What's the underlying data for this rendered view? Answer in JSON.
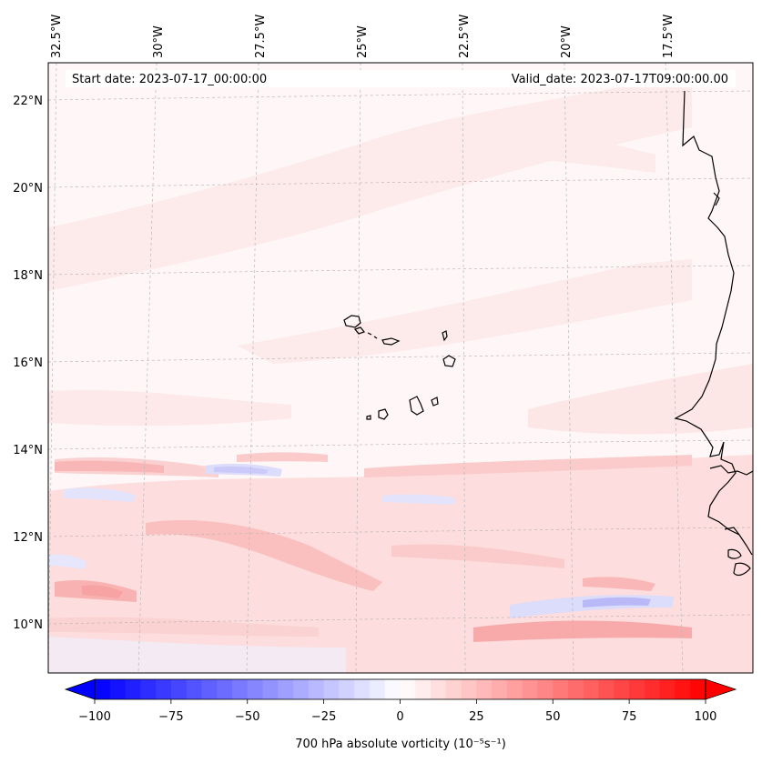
{
  "map": {
    "start_label": "Start date: 2023-07-17_00:00:00",
    "valid_label": "Valid_date: 2023-07-17T09:00:00.00",
    "projection": "lambert-conformal",
    "extent_deg": {
      "lon_min": -33.0,
      "lon_max": -16.0,
      "lat_min": 8.8,
      "lat_max": 22.8
    },
    "lon_ticks": [
      {
        "label": "32.5°W",
        "value": -32.5
      },
      {
        "label": "30°W",
        "value": -30
      },
      {
        "label": "27.5°W",
        "value": -27.5
      },
      {
        "label": "25°W",
        "value": -25
      },
      {
        "label": "22.5°W",
        "value": -22.5
      },
      {
        "label": "20°W",
        "value": -20
      },
      {
        "label": "17.5°W",
        "value": -17.5
      }
    ],
    "lat_ticks": [
      {
        "label": "22°N",
        "value": 22
      },
      {
        "label": "20°N",
        "value": 20
      },
      {
        "label": "18°N",
        "value": 18
      },
      {
        "label": "16°N",
        "value": 16
      },
      {
        "label": "14°N",
        "value": 14
      },
      {
        "label": "12°N",
        "value": 12
      },
      {
        "label": "10°N",
        "value": 10
      }
    ],
    "features": [
      "Cabo Verde islands",
      "West African coastline"
    ],
    "colors": {
      "coast": "#000000",
      "grid": "#b0b0b0",
      "ocean_base": "#fff5f5"
    }
  },
  "colorbar": {
    "label": "700 hPa absolute vorticity (10⁻⁵s⁻¹)",
    "min": -100,
    "max": 100,
    "step": 5,
    "ticks": [
      {
        "label": "−100",
        "value": -100
      },
      {
        "label": "−75",
        "value": -75
      },
      {
        "label": "−50",
        "value": -50
      },
      {
        "label": "−25",
        "value": -25
      },
      {
        "label": "0",
        "value": 0
      },
      {
        "label": "25",
        "value": 25
      },
      {
        "label": "50",
        "value": 50
      },
      {
        "label": "75",
        "value": 75
      },
      {
        "label": "100",
        "value": 100
      }
    ],
    "colormap": "bwr"
  }
}
